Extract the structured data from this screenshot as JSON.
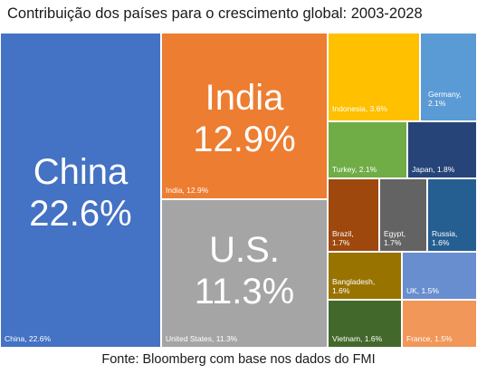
{
  "title": "Contribuição dos países para o crescimento global: 2003-2028",
  "source": "Fonte: Bloomberg com base nos dados do FMI",
  "chart_data": {
    "type": "treemap",
    "title": "Contribuição dos países para o crescimento global: 2003-2028",
    "unit": "%",
    "items": [
      {
        "name": "China",
        "label": "China, 22.6%",
        "big_name": "China",
        "big_value": "22.6%",
        "value": 22.6,
        "color": "#4472c4"
      },
      {
        "name": "India",
        "label": "India, 12.9%",
        "big_name": "India",
        "big_value": "12.9%",
        "value": 12.9,
        "color": "#ed7d31"
      },
      {
        "name": "United States",
        "label": "United States, 11.3%",
        "big_name": "U.S.",
        "big_value": "11.3%",
        "value": 11.3,
        "color": "#a5a5a5"
      },
      {
        "name": "Indonesia",
        "label": "Indonesia, 3.6%",
        "value": 3.6,
        "color": "#ffc000"
      },
      {
        "name": "Germany",
        "label": "Germany, 2.1%",
        "value": 2.1,
        "color": "#5b9bd5"
      },
      {
        "name": "Turkey",
        "label": "Turkey, 2.1%",
        "value": 2.1,
        "color": "#70ad47"
      },
      {
        "name": "Japan",
        "label": "Japan, 1.8%",
        "value": 1.8,
        "color": "#264478"
      },
      {
        "name": "Brazil",
        "label": "Brazil, 1.7%",
        "value": 1.7,
        "color": "#9e480e"
      },
      {
        "name": "Egypt",
        "label": "Egypt, 1.7%",
        "value": 1.7,
        "color": "#636363"
      },
      {
        "name": "Russia",
        "label": "Russia, 1.6%",
        "value": 1.6,
        "color": "#255e91"
      },
      {
        "name": "Bangladesh",
        "label": "Bangladesh, 1.6%",
        "value": 1.6,
        "color": "#997300"
      },
      {
        "name": "UK",
        "label": "UK, 1.5%",
        "value": 1.5,
        "color": "#698ed0"
      },
      {
        "name": "Vietnam",
        "label": "Vietnam, 1.6%",
        "value": 1.6,
        "color": "#43682b"
      },
      {
        "name": "France",
        "label": "France, 1.5%",
        "value": 1.5,
        "color": "#f1975a"
      }
    ]
  }
}
